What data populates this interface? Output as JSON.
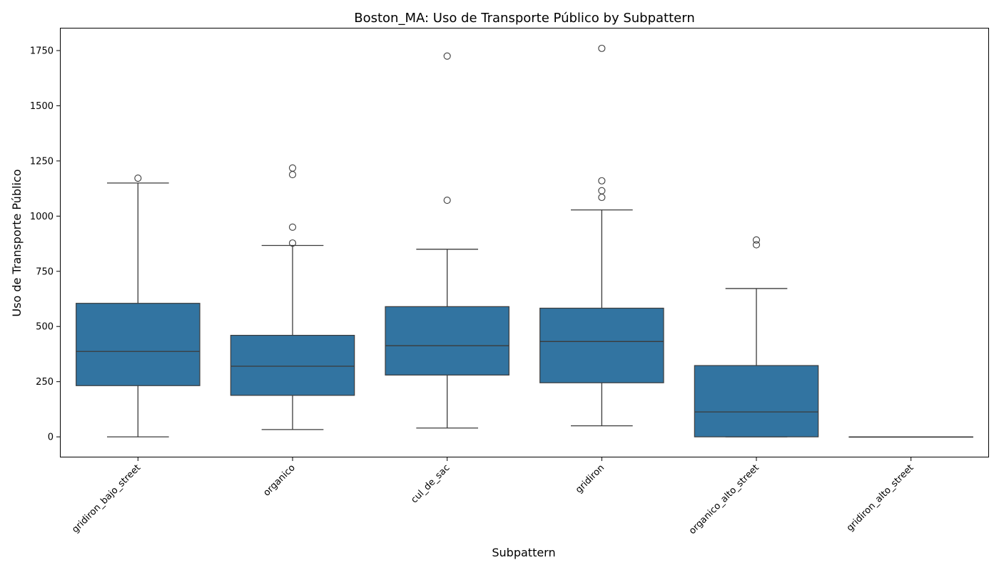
{
  "chart_data": {
    "type": "box",
    "title": "Boston_MA: Uso de Transporte Público by Subpattern",
    "xlabel": "Subpattern",
    "ylabel": "Uso de Transporte Público",
    "ylim": [
      -90,
      1850
    ],
    "yticks": [
      0,
      250,
      500,
      750,
      1000,
      1250,
      1500,
      1750
    ],
    "grid": false,
    "box_color": "#3274a1",
    "categories": [
      "gridiron_bajo_street",
      "organico",
      "cul_de_sac",
      "gridiron",
      "organico_alto_street",
      "gridiron_alto_street"
    ],
    "boxes": [
      {
        "category": "gridiron_bajo_street",
        "whisker_low": 0,
        "q1": 232,
        "median": 387,
        "q3": 605,
        "whisker_high": 1150,
        "outliers": [
          1172
        ]
      },
      {
        "category": "organico",
        "whisker_low": 33,
        "q1": 188,
        "median": 320,
        "q3": 460,
        "whisker_high": 867,
        "outliers": [
          878,
          950,
          1188,
          1218
        ]
      },
      {
        "category": "cul_de_sac",
        "whisker_low": 40,
        "q1": 280,
        "median": 413,
        "q3": 590,
        "whisker_high": 850,
        "outliers": [
          1072,
          1725
        ]
      },
      {
        "category": "gridiron",
        "whisker_low": 50,
        "q1": 245,
        "median": 432,
        "q3": 583,
        "whisker_high": 1028,
        "outliers": [
          1085,
          1115,
          1160,
          1760
        ]
      },
      {
        "category": "organico_alto_street",
        "whisker_low": 0,
        "q1": 0,
        "median": 113,
        "q3": 323,
        "whisker_high": 672,
        "outliers": [
          870,
          892
        ]
      },
      {
        "category": "gridiron_alto_street",
        "whisker_low": 0,
        "q1": 0,
        "median": 0,
        "q3": 0,
        "whisker_high": 0,
        "outliers": []
      }
    ]
  }
}
